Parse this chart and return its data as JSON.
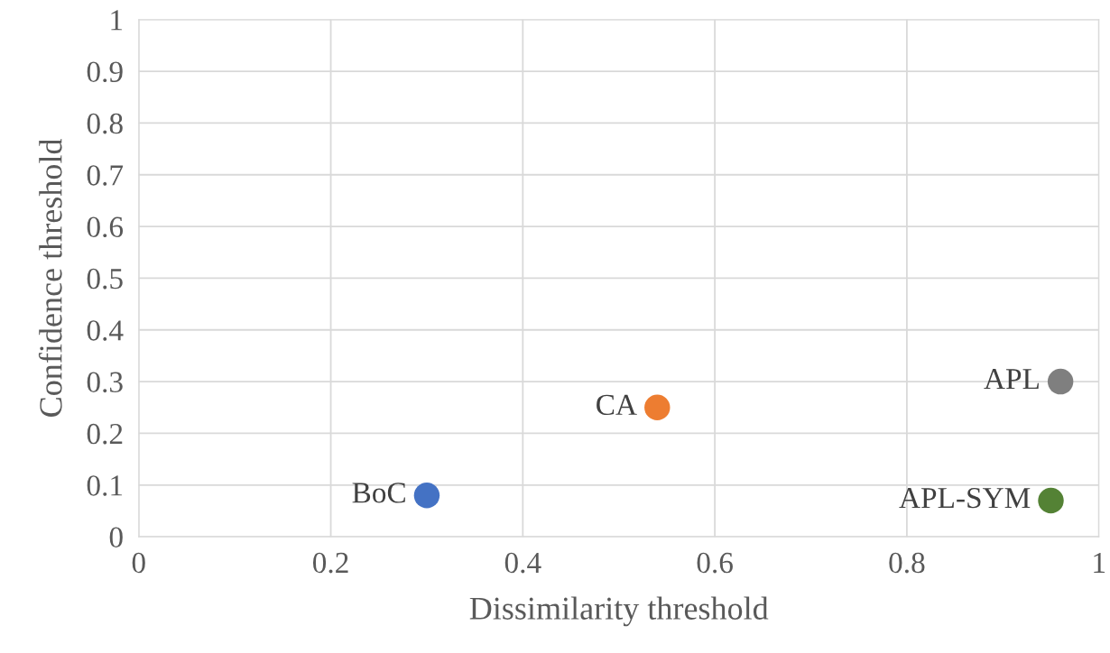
{
  "chart_data": {
    "type": "scatter",
    "xlabel": "Dissimilarity threshold",
    "ylabel": "Confidence threshold",
    "series": [
      {
        "name": "BoC",
        "color": "#4472c4",
        "x": [
          0.3
        ],
        "values": [
          0.08
        ]
      },
      {
        "name": "CA",
        "color": "#ed7d31",
        "x": [
          0.54
        ],
        "values": [
          0.25
        ]
      },
      {
        "name": "APL",
        "color": "#7f7f7f",
        "x": [
          0.96
        ],
        "values": [
          0.3
        ]
      },
      {
        "name": "APL-SYM",
        "color": "#548235",
        "x": [
          0.95
        ],
        "values": [
          0.07
        ]
      }
    ],
    "xlim": [
      0,
      1
    ],
    "ylim": [
      0,
      1
    ],
    "xticks": [
      0,
      0.2,
      0.4,
      0.6,
      0.8,
      1
    ],
    "yticks": [
      0,
      0.1,
      0.2,
      0.3,
      0.4,
      0.5,
      0.6,
      0.7,
      0.8,
      0.9,
      1
    ],
    "grid": true,
    "marker": "circle"
  }
}
